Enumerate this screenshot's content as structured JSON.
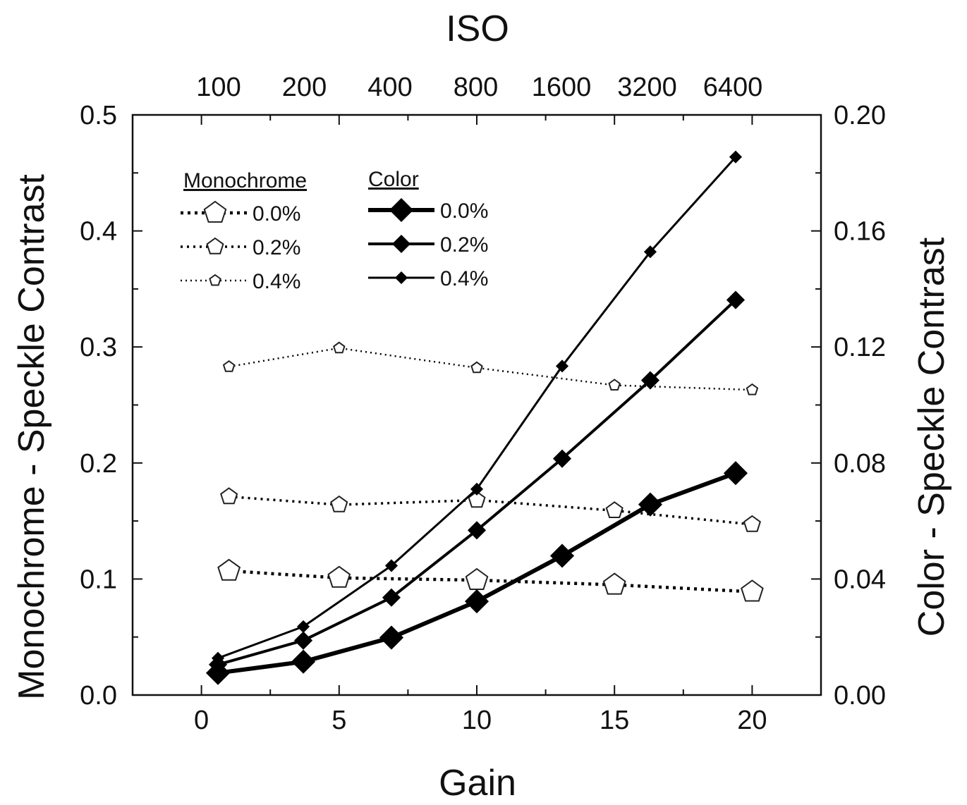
{
  "chart_data": {
    "type": "line",
    "top_axis_title": "ISO",
    "top_ticks": [
      "100",
      "200",
      "400",
      "800",
      "1600",
      "3200",
      "6400"
    ],
    "xlabel": "Gain",
    "ylabel_left": "Monochrome - Speckle Contrast",
    "ylabel_right": "Color - Speckle Contrast",
    "xlim": [
      -2.5,
      22.5
    ],
    "ylim_left": [
      0.0,
      0.5
    ],
    "ylim_right": [
      0.0,
      0.2
    ],
    "x_ticks": [
      "0",
      "5",
      "10",
      "15",
      "20"
    ],
    "y_left_ticks": [
      "0.0",
      "0.1",
      "0.2",
      "0.3",
      "0.4",
      "0.5"
    ],
    "y_right_ticks": [
      "0.00",
      "0.04",
      "0.08",
      "0.12",
      "0.16",
      "0.20"
    ],
    "legend": {
      "mono_heading": "Monochrome",
      "color_heading": "Color",
      "mono_labels": [
        "0.0%",
        "0.2%",
        "0.4%"
      ],
      "color_labels": [
        "0.0%",
        "0.2%",
        "0.4%"
      ]
    },
    "series": [
      {
        "group": "Monochrome",
        "name": "0.0%",
        "axis": "left",
        "marker": "pentagon-open",
        "size": "large",
        "line": "dotted-heavy",
        "x": [
          1,
          5,
          10,
          15,
          20
        ],
        "y": [
          0.107,
          0.101,
          0.099,
          0.095,
          0.089
        ]
      },
      {
        "group": "Monochrome",
        "name": "0.2%",
        "axis": "left",
        "marker": "pentagon-open",
        "size": "medium",
        "line": "dotted",
        "x": [
          1,
          5,
          10,
          15,
          20
        ],
        "y": [
          0.171,
          0.164,
          0.168,
          0.159,
          0.147
        ]
      },
      {
        "group": "Monochrome",
        "name": "0.4%",
        "axis": "left",
        "marker": "pentagon-open",
        "size": "small",
        "line": "dotted-thin",
        "x": [
          1,
          5,
          10,
          15,
          20
        ],
        "y": [
          0.283,
          0.299,
          0.282,
          0.267,
          0.263
        ]
      },
      {
        "group": "Color",
        "name": "0.0%",
        "axis": "right",
        "marker": "diamond-filled",
        "size": "large",
        "line": "solid-heavy",
        "x": [
          0.6,
          3.7,
          6.9,
          10,
          13.1,
          16.3,
          19.4
        ],
        "y": [
          0.0076,
          0.0115,
          0.0198,
          0.0323,
          0.048,
          0.0657,
          0.0765
        ]
      },
      {
        "group": "Color",
        "name": "0.2%",
        "axis": "right",
        "marker": "diamond-filled",
        "size": "medium",
        "line": "solid",
        "x": [
          0.6,
          3.7,
          6.9,
          10,
          13.1,
          16.3,
          19.4
        ],
        "y": [
          0.0105,
          0.0188,
          0.0336,
          0.0568,
          0.0815,
          0.1085,
          0.1362
        ]
      },
      {
        "group": "Color",
        "name": "0.4%",
        "axis": "right",
        "marker": "diamond-filled",
        "size": "small",
        "line": "solid-thin",
        "x": [
          0.6,
          3.7,
          6.9,
          10,
          13.1,
          16.3,
          19.4
        ],
        "y": [
          0.0127,
          0.0236,
          0.0446,
          0.071,
          0.1134,
          0.1528,
          0.1855
        ]
      }
    ]
  }
}
